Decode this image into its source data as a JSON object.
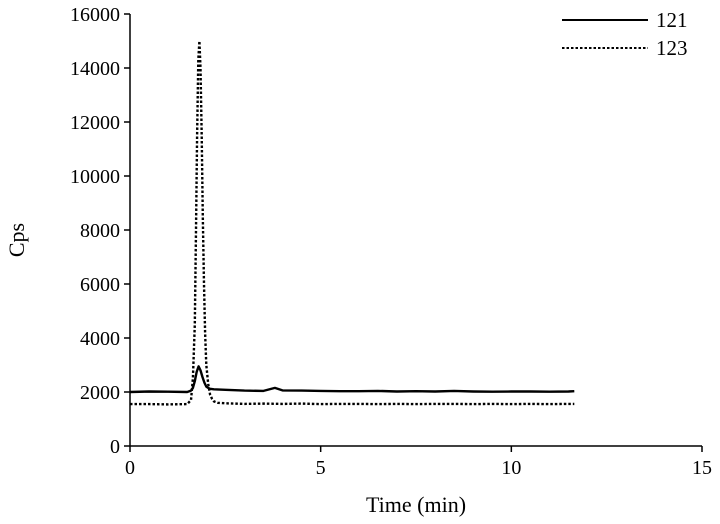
{
  "chart_data": {
    "type": "line",
    "title": "",
    "xlabel": "Time (min)",
    "ylabel": "Cps",
    "xlim": [
      0,
      15
    ],
    "ylim": [
      0,
      16000
    ],
    "xticks": [
      0,
      5,
      10,
      15
    ],
    "yticks": [
      0,
      2000,
      4000,
      6000,
      8000,
      10000,
      12000,
      14000,
      16000
    ],
    "grid": false,
    "legend_position": "top-right",
    "series": [
      {
        "name": "121",
        "style": "solid",
        "color": "#000000",
        "x": [
          0,
          0.5,
          1.0,
          1.5,
          1.6,
          1.65,
          1.7,
          1.75,
          1.8,
          1.85,
          1.9,
          1.95,
          2.0,
          2.05,
          2.1,
          2.2,
          2.5,
          3.0,
          3.5,
          3.8,
          4.0,
          4.5,
          5.0,
          5.5,
          6.0,
          6.5,
          7.0,
          7.5,
          8.0,
          8.5,
          9.0,
          9.5,
          10.0,
          10.5,
          11.0,
          11.5,
          11.65
        ],
        "y": [
          2000,
          2020,
          2010,
          2000,
          2050,
          2150,
          2400,
          2750,
          2950,
          2800,
          2550,
          2350,
          2200,
          2150,
          2120,
          2100,
          2080,
          2050,
          2040,
          2150,
          2060,
          2050,
          2040,
          2030,
          2030,
          2040,
          2020,
          2030,
          2020,
          2040,
          2020,
          2010,
          2020,
          2020,
          2010,
          2020,
          2030
        ]
      },
      {
        "name": "123",
        "style": "dotted",
        "color": "#000000",
        "x": [
          0,
          0.5,
          1.0,
          1.5,
          1.6,
          1.65,
          1.7,
          1.73,
          1.76,
          1.79,
          1.82,
          1.85,
          1.88,
          1.91,
          1.94,
          1.97,
          2.0,
          2.05,
          2.1,
          2.15,
          2.2,
          2.3,
          2.5,
          3.0,
          3.5,
          4.0,
          4.5,
          5.0,
          5.5,
          6.0,
          6.5,
          7.0,
          7.5,
          8.0,
          8.5,
          9.0,
          9.5,
          10.0,
          10.5,
          11.0,
          11.5,
          11.65
        ],
        "y": [
          1550,
          1550,
          1540,
          1550,
          1700,
          2500,
          4500,
          8000,
          11500,
          14300,
          15000,
          14000,
          11500,
          8500,
          6000,
          4200,
          3000,
          2300,
          1900,
          1750,
          1650,
          1600,
          1580,
          1560,
          1570,
          1560,
          1570,
          1550,
          1560,
          1560,
          1550,
          1560,
          1550,
          1560,
          1560,
          1550,
          1560,
          1550,
          1560,
          1550,
          1560,
          1560
        ]
      }
    ]
  }
}
